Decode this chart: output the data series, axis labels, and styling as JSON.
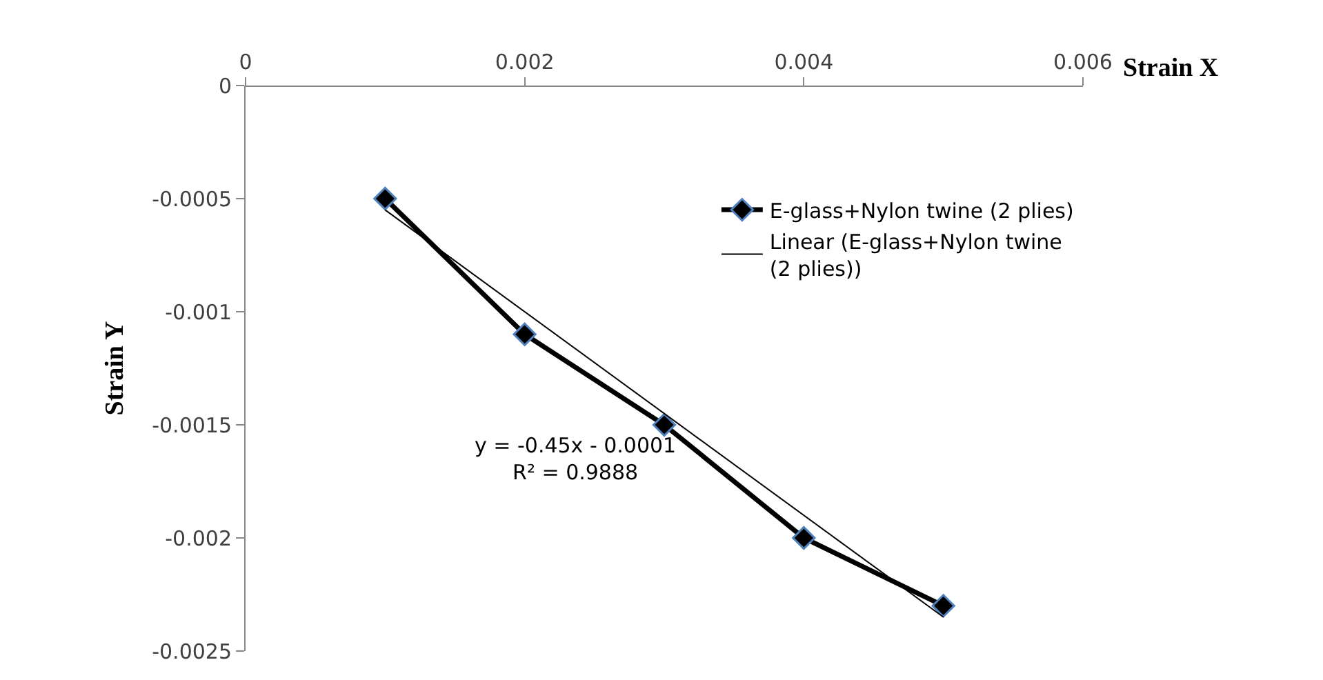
{
  "chart_data": {
    "type": "line",
    "xlabel": "Strain X",
    "ylabel": "Strain Y",
    "xlim": [
      0,
      0.006
    ],
    "xticks": [
      0,
      0.002,
      0.004,
      0.006
    ],
    "ylim": [
      -0.0025,
      0
    ],
    "yticks": [
      -0.0025,
      -0.002,
      -0.0015,
      -0.001,
      -0.0005,
      0
    ],
    "x": [
      0.001,
      0.002,
      0.003,
      0.004,
      0.005
    ],
    "series": [
      {
        "name": "E-glass+Nylon twine (2 plies)",
        "color": "#000000",
        "values": [
          -0.0005,
          -0.0011,
          -0.0015,
          -0.002,
          -0.0023
        ],
        "marker": "diamond"
      },
      {
        "name": "Linear (E-glass+Nylon twine (2 plies))",
        "type": "line",
        "color": "#000000",
        "x": [
          0.001,
          0.005
        ],
        "values": [
          -0.00055,
          -0.00235
        ],
        "marker": "none"
      }
    ],
    "annotations": [
      "y = -0.45x - 0.0001\nR² = 0.9888"
    ],
    "legend": "right"
  }
}
